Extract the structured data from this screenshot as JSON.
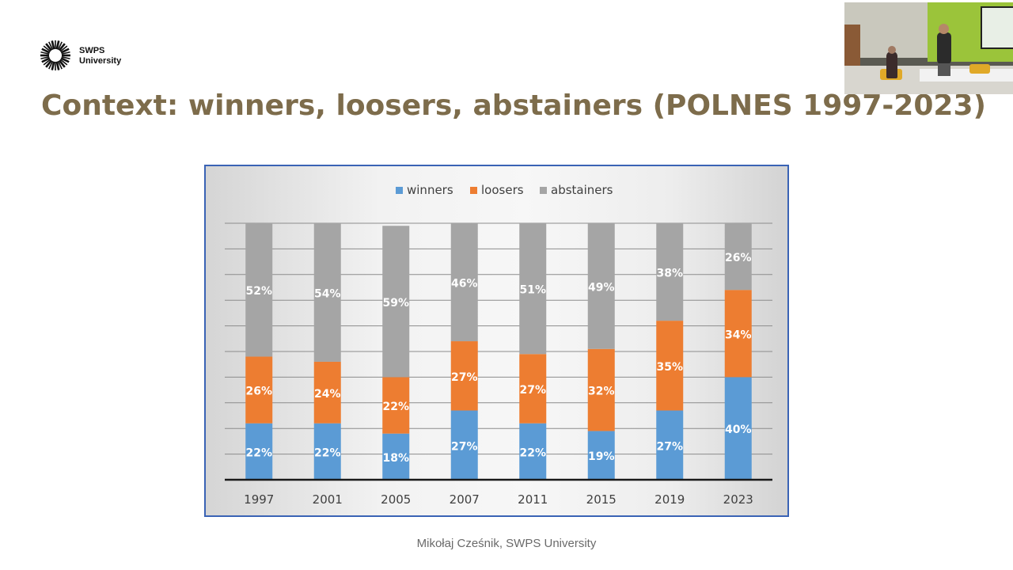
{
  "logo": {
    "line1": "SWPS",
    "line2": "University"
  },
  "title": "Context: winners, loosers, abstainers (POLNES 1997-2023)",
  "footer": "Mikołaj Cześnik, SWPS University",
  "colors": {
    "title": "#7d6c4b",
    "winners": "#5b9bd5",
    "loosers": "#ed7d31",
    "abstainers": "#a5a5a5",
    "frame_border": "#3a63b5"
  },
  "chart_data": {
    "type": "bar",
    "stacked": true,
    "categories": [
      "1997",
      "2001",
      "2005",
      "2007",
      "2011",
      "2015",
      "2019",
      "2023"
    ],
    "series": [
      {
        "name": "winners",
        "values": [
          22,
          22,
          18,
          27,
          22,
          19,
          27,
          40
        ]
      },
      {
        "name": "loosers",
        "values": [
          26,
          24,
          22,
          27,
          27,
          32,
          35,
          34
        ]
      },
      {
        "name": "abstainers",
        "values": [
          52,
          54,
          59,
          46,
          51,
          49,
          38,
          26
        ]
      }
    ],
    "value_suffix": "%",
    "ylim": [
      0,
      100
    ],
    "legend": "top-center",
    "grid": true,
    "xlabel": "",
    "ylabel": ""
  }
}
